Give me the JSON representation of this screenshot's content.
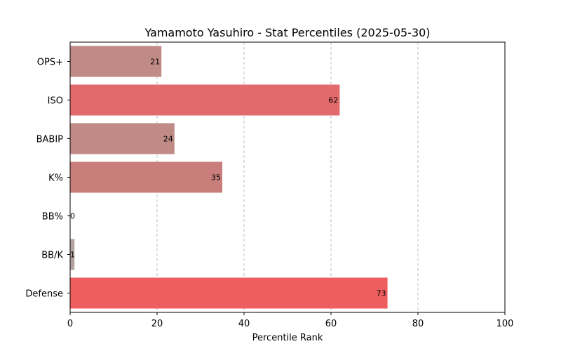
{
  "chart_data": {
    "type": "bar",
    "orientation": "horizontal",
    "title": "Yamamoto Yasuhiro - Stat Percentiles (2025-05-30)",
    "xlabel": "Percentile Rank",
    "ylabel": "",
    "xlim": [
      0,
      100
    ],
    "xticks": [
      0,
      20,
      40,
      60,
      80,
      100
    ],
    "grid": "x-dashed",
    "categories": [
      "OPS+",
      "ISO",
      "BABIP",
      "K%",
      "BB%",
      "BB/K",
      "Defense"
    ],
    "values": [
      21,
      62,
      24,
      35,
      0,
      1,
      73
    ],
    "colors": [
      "#c08a87",
      "#e36a6a",
      "#c08a87",
      "#c97e7c",
      "#b2a3a0",
      "#b2a3a0",
      "#ee5e5e"
    ]
  }
}
